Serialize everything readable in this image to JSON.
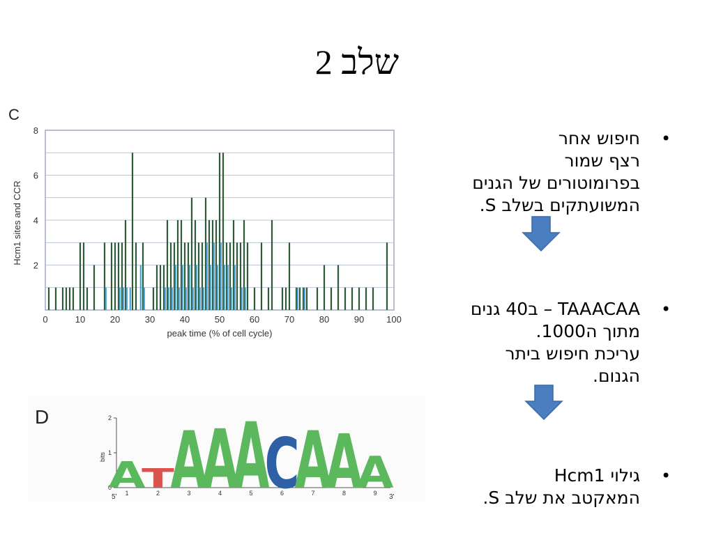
{
  "slide": {
    "title": "שלב 2"
  },
  "bullets": [
    {
      "lines": [
        "חיפוש אחר",
        "רצף שמור",
        "בפרומוטורים של הגנים",
        "המשועתקים  בשלב S."
      ]
    },
    {
      "lines": [
        "TAAACAA – ב40 גנים",
        "מתוך ה1000.",
        "עריכת חיפוש ביתר",
        "הגנום."
      ]
    },
    {
      "lines": [
        "גילוי Hcm1",
        "המאקטב את שלב S."
      ]
    }
  ],
  "bullet_glyph": "•",
  "colors": {
    "bar_dark": "#2e5a3a",
    "bar_light": "#4aa3d8",
    "arrow": "#4a7ec0",
    "arrow_stroke": "#3a6aa8"
  },
  "chart_data": [
    {
      "type": "bar",
      "panel_label": "C",
      "title": "",
      "xlabel": "peak time (% of cell cycle)",
      "ylabel": "Hcm1 sites and CCR",
      "xlim": [
        0,
        100
      ],
      "ylim": [
        0,
        8
      ],
      "xticks": [
        0,
        10,
        20,
        30,
        40,
        50,
        60,
        70,
        80,
        90,
        100
      ],
      "yticks": [
        2,
        4,
        6,
        8
      ],
      "grid": true,
      "series": [
        {
          "x": [
            1,
            3,
            5,
            6,
            7,
            8,
            10,
            11,
            12,
            14,
            17,
            19,
            20,
            21,
            22,
            23,
            25,
            26,
            28,
            31,
            32,
            33,
            34,
            35,
            36,
            37,
            38,
            39,
            40,
            41,
            42,
            43,
            44,
            45,
            46,
            47,
            48,
            49,
            50,
            51,
            52,
            53,
            54,
            55,
            56,
            57,
            58,
            60,
            62,
            64,
            65,
            68,
            69,
            70,
            72,
            73,
            74,
            75,
            78,
            80,
            82,
            84,
            86,
            88,
            90,
            92,
            94,
            98
          ],
          "values": [
            1,
            1,
            1,
            1,
            1,
            1,
            3,
            3,
            1,
            2,
            3,
            3,
            3,
            3,
            3,
            4,
            7,
            3,
            3,
            1,
            2,
            2,
            2,
            4,
            3,
            3,
            4,
            4,
            3,
            3,
            5,
            4,
            3,
            3,
            5,
            4,
            4,
            4,
            7,
            7,
            3,
            3,
            4,
            3,
            3,
            4,
            3,
            1,
            3,
            1,
            4,
            1,
            1,
            3,
            1,
            1,
            1,
            1,
            1,
            2,
            1,
            2,
            1,
            1,
            1,
            1,
            1,
            3
          ]
        },
        {
          "x": [
            17,
            21,
            22,
            23,
            24,
            27,
            28,
            34,
            35,
            36,
            37,
            38,
            39,
            40,
            41,
            42,
            43,
            44,
            45,
            46,
            47,
            48,
            49,
            50,
            51,
            52,
            53,
            54,
            56,
            57,
            72,
            74
          ],
          "values": [
            1,
            1,
            1,
            1,
            1,
            2,
            1,
            1,
            1,
            1,
            2,
            1,
            2,
            1,
            2,
            1,
            2,
            1,
            1,
            3,
            2,
            3,
            2,
            3,
            2,
            2,
            1,
            2,
            1,
            1,
            1,
            1
          ]
        }
      ]
    },
    {
      "type": "sequence_logo",
      "panel_label": "D",
      "ylabel": "bits",
      "ylim": [
        0,
        2
      ],
      "yticks": [
        0,
        1,
        2
      ],
      "xticks": [
        1,
        2,
        3,
        4,
        5,
        6,
        7,
        8,
        9
      ],
      "left_end": "5'",
      "right_end": "3'",
      "positions": [
        {
          "pos": 1,
          "letters": [
            {
              "base": "A",
              "bits": 0.75,
              "color": "#5cb85c"
            }
          ]
        },
        {
          "pos": 2,
          "letters": [
            {
              "base": "T",
              "bits": 0.55,
              "color": "#d9534f"
            }
          ]
        },
        {
          "pos": 3,
          "letters": [
            {
              "base": "A",
              "bits": 1.65,
              "color": "#5cb85c"
            }
          ]
        },
        {
          "pos": 4,
          "letters": [
            {
              "base": "A",
              "bits": 1.7,
              "color": "#5cb85c"
            }
          ]
        },
        {
          "pos": 5,
          "letters": [
            {
              "base": "A",
              "bits": 1.9,
              "color": "#5cb85c"
            }
          ]
        },
        {
          "pos": 6,
          "letters": [
            {
              "base": "C",
              "bits": 1.45,
              "color": "#2f5fa5"
            }
          ]
        },
        {
          "pos": 7,
          "letters": [
            {
              "base": "A",
              "bits": 1.65,
              "color": "#5cb85c"
            }
          ]
        },
        {
          "pos": 8,
          "letters": [
            {
              "base": "A",
              "bits": 1.55,
              "color": "#5cb85c"
            }
          ]
        },
        {
          "pos": 9,
          "letters": [
            {
              "base": "A",
              "bits": 0.9,
              "color": "#5cb85c"
            }
          ]
        }
      ]
    }
  ]
}
